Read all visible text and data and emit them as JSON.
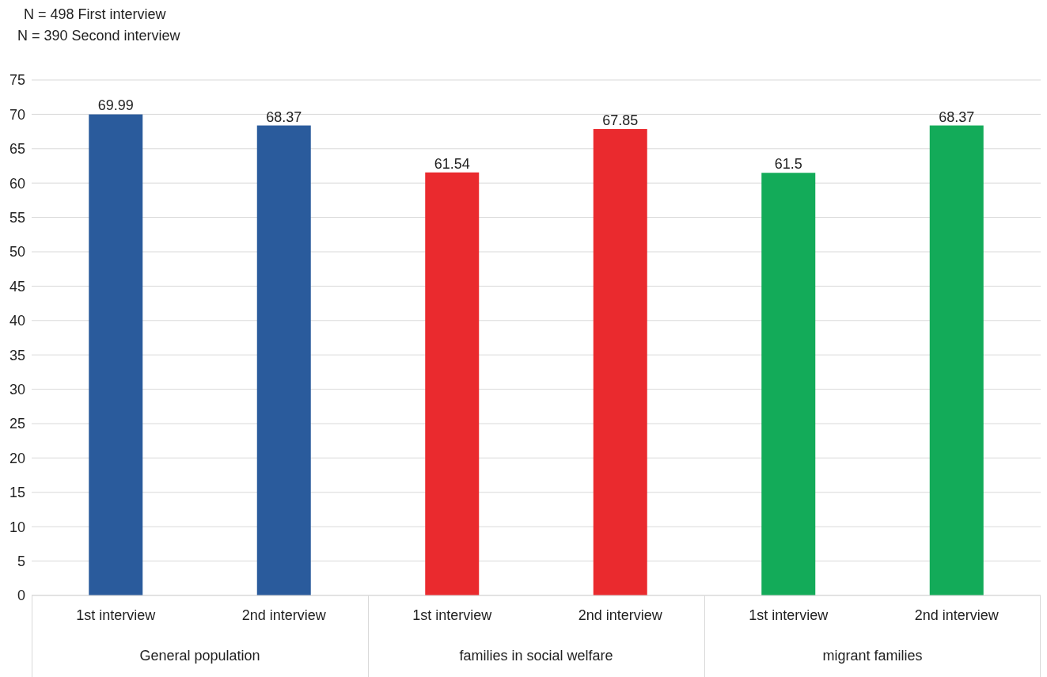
{
  "chart_data": {
    "type": "bar",
    "title": "N = 498 First interview",
    "subtitle": "N = 390 Second interview",
    "categories": [
      "1st interview",
      "2nd interview",
      "1st interview",
      "2nd interview",
      "1st interview",
      "2nd interview"
    ],
    "values": [
      69.99,
      68.37,
      61.54,
      67.85,
      61.5,
      68.37
    ],
    "colors": [
      "#2a5b9c",
      "#2a5b9c",
      "#ea2a2e",
      "#ea2a2e",
      "#13ab59",
      "#13ab59"
    ],
    "annotations": [
      "General population",
      "families in social welfare",
      "migrant families"
    ],
    "ylim": [
      0,
      75
    ],
    "yticks": [
      0,
      5,
      10,
      15,
      20,
      25,
      30,
      35,
      40,
      45,
      50,
      55,
      60,
      65,
      70,
      75
    ],
    "grid": "y",
    "data_labels": true
  }
}
